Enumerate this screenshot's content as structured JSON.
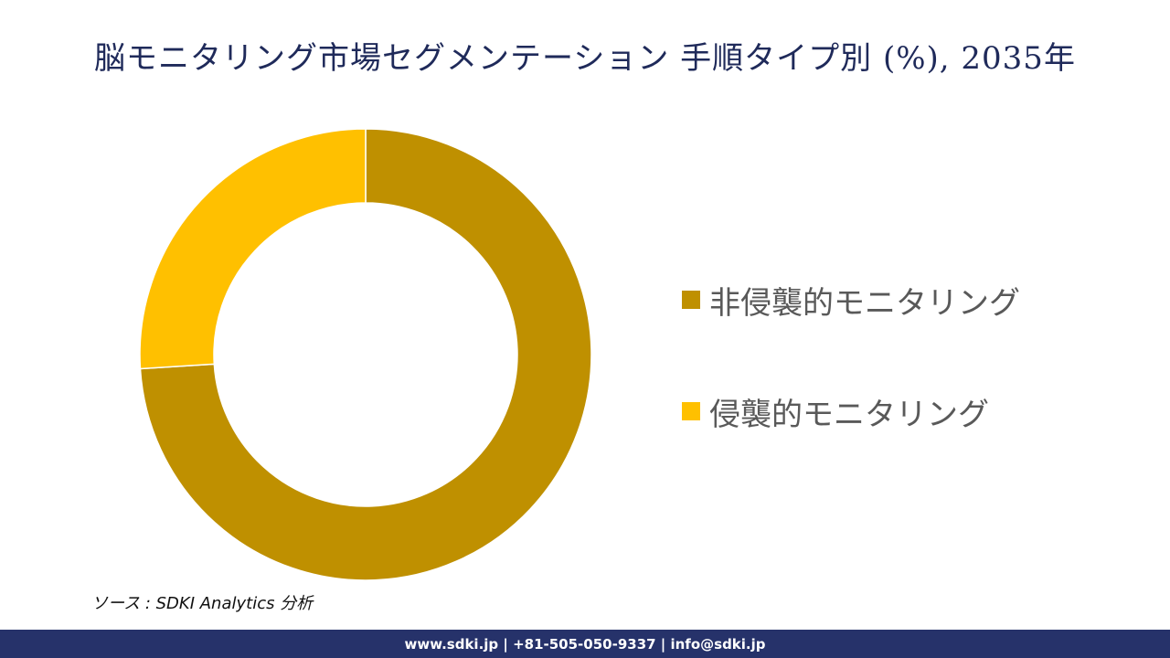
{
  "title": "脳モニタリング市場セグメンテーション 手順タイプ別 (%), 2035年",
  "chart_data": {
    "type": "pie",
    "title": "脳モニタリング市場セグメンテーション 手順タイプ別 (%), 2035年",
    "categories": [
      "非侵襲的モニタリング",
      "侵襲的モニタリング"
    ],
    "values": [
      74,
      26
    ],
    "colors": [
      "#bf9000",
      "#ffc000"
    ],
    "unit": "%",
    "donut": true,
    "legend_position": "right"
  },
  "legend": {
    "items": [
      {
        "label": "非侵襲的モニタリング",
        "color": "#bf9000"
      },
      {
        "label": "侵襲的モニタリング",
        "color": "#ffc000"
      }
    ]
  },
  "source": "ソース : SDKI Analytics 分析",
  "footer": {
    "text": "www.sdki.jp | +81-505-050-9337 | info@sdki.jp",
    "background": "#26326a"
  }
}
